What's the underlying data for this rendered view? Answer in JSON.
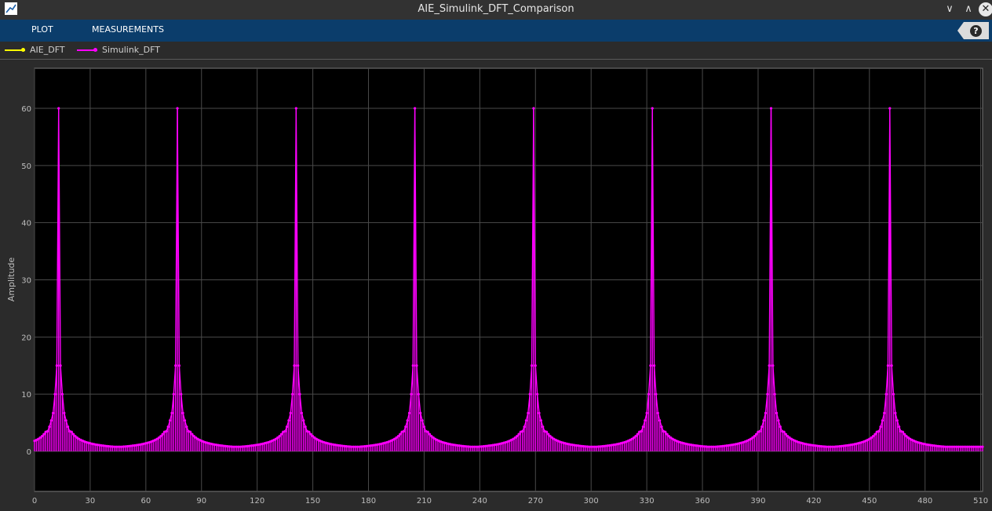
{
  "window": {
    "title": "AIE_Simulink_DFT_Comparison",
    "controls": [
      {
        "icon": "chevron-down-icon",
        "glyph": "∨"
      },
      {
        "icon": "chevron-up-icon",
        "glyph": "∧"
      },
      {
        "icon": "close-icon",
        "glyph": "✕"
      }
    ]
  },
  "ribbon": {
    "tabs": [
      "PLOT",
      "MEASUREMENTS"
    ],
    "help_icon": "?",
    "color": "#0b3d6b"
  },
  "legend": [
    {
      "name": "AIE_DFT",
      "color": "#ffff00"
    },
    {
      "name": "Simulink_DFT",
      "color": "#ff00ff"
    }
  ],
  "colors": {
    "plot_bg": "#000000",
    "grid": "#4a4a4a",
    "frame": "#2b2b2b"
  },
  "chart_data": {
    "type": "line",
    "title": "",
    "xlabel": "",
    "ylabel": "Amplitude",
    "xlim": [
      0,
      511
    ],
    "ylim": [
      -7,
      67
    ],
    "xticks": [
      0,
      30,
      60,
      90,
      120,
      150,
      180,
      210,
      240,
      270,
      300,
      330,
      360,
      390,
      420,
      450,
      480,
      510
    ],
    "yticks": [
      0,
      10,
      20,
      30,
      40,
      50,
      60
    ],
    "grid": true,
    "legend_position": "top-left",
    "series": [
      {
        "name": "Simulink_DFT",
        "color": "#ff00ff",
        "marker": "dot",
        "style": "stem",
        "x_step": 1,
        "peak_bins": [
          13,
          77,
          141,
          205,
          269,
          333,
          397,
          461
        ],
        "peak_value": 60,
        "neighbor_values": [
          15,
          10,
          6.7,
          5.4,
          4.3,
          3.5
        ],
        "floor_value": 0.8
      },
      {
        "name": "AIE_DFT",
        "color": "#ffff00",
        "marker": "dot",
        "style": "stem",
        "overlaid_by": "Simulink_DFT"
      }
    ]
  }
}
